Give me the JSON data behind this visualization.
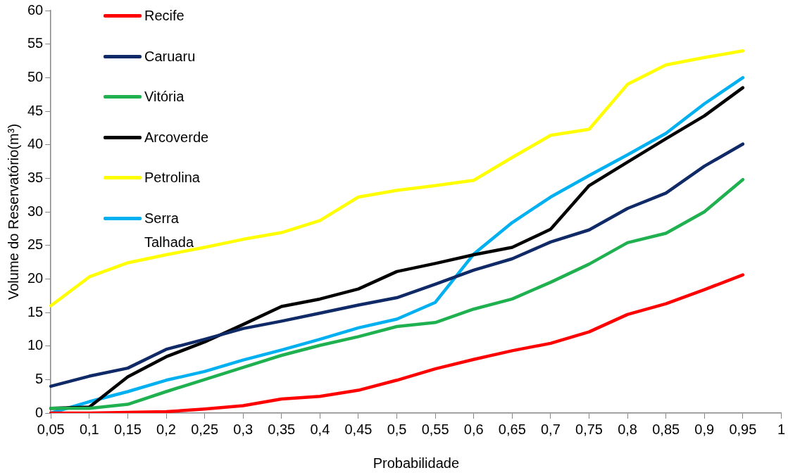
{
  "chart_data": {
    "type": "line",
    "xlabel": "Probabilidade",
    "ylabel": "Volume do Reservatório(m³)",
    "categories": [
      "0,05",
      "0,1",
      "0,15",
      "0,2",
      "0,25",
      "0,3",
      "0,35",
      "0,4",
      "0,45",
      "0,5",
      "0,55",
      "0,6",
      "0,65",
      "0,7",
      "0,75",
      "0,8",
      "0,85",
      "0,9",
      "0,95",
      "1"
    ],
    "ylim": [
      0,
      60
    ],
    "yticks": [
      0,
      5,
      10,
      15,
      20,
      25,
      30,
      35,
      40,
      45,
      50,
      55,
      60
    ],
    "grid": false,
    "legend": "top left",
    "marker": "none",
    "line_style": "solid",
    "series": [
      {
        "name": "Recife",
        "color": "#ff0000",
        "values": [
          0,
          0,
          0.1,
          0.2,
          0.6,
          1.1,
          2.1,
          2.5,
          3.4,
          4.9,
          6.6,
          8.0,
          9.3,
          10.4,
          12.1,
          14.7,
          16.3,
          18.4,
          20.6,
          null
        ]
      },
      {
        "name": "Caruaru",
        "color": "#0f2a66",
        "values": [
          4.0,
          5.5,
          6.7,
          9.5,
          11.0,
          12.6,
          13.7,
          14.9,
          16.1,
          17.2,
          19.2,
          21.3,
          23.0,
          25.5,
          27.3,
          30.5,
          32.8,
          36.8,
          40.1,
          null
        ]
      },
      {
        "name": "Vitória",
        "color": "#1fb04f",
        "values": [
          0.7,
          0.7,
          1.3,
          3.2,
          5.0,
          6.8,
          8.6,
          10.1,
          11.4,
          12.9,
          13.5,
          15.5,
          17.0,
          19.5,
          22.2,
          25.4,
          26.8,
          30.0,
          34.8,
          null
        ]
      },
      {
        "name": "Arcoverde",
        "color": "#000000",
        "values": [
          0.7,
          0.9,
          5.4,
          8.4,
          10.6,
          13.2,
          15.9,
          17.0,
          18.5,
          21.1,
          22.3,
          23.6,
          24.7,
          27.4,
          33.9,
          37.4,
          40.9,
          44.3,
          48.5,
          null
        ]
      },
      {
        "name": "Petrolina",
        "color": "#ffff00",
        "values": [
          16.0,
          20.3,
          22.4,
          23.6,
          24.7,
          25.9,
          26.9,
          28.7,
          32.2,
          33.2,
          33.9,
          34.7,
          38.1,
          41.4,
          42.3,
          49.0,
          51.9,
          53.0,
          54.0,
          null
        ]
      },
      {
        "name": "Serra Talhada",
        "color": "#00b0f0",
        "values": [
          0,
          1.7,
          3.2,
          4.9,
          6.2,
          7.9,
          9.4,
          11.0,
          12.7,
          14.0,
          16.5,
          23.7,
          28.4,
          32.2,
          35.4,
          38.5,
          41.7,
          46.1,
          50.0,
          null
        ]
      }
    ]
  }
}
